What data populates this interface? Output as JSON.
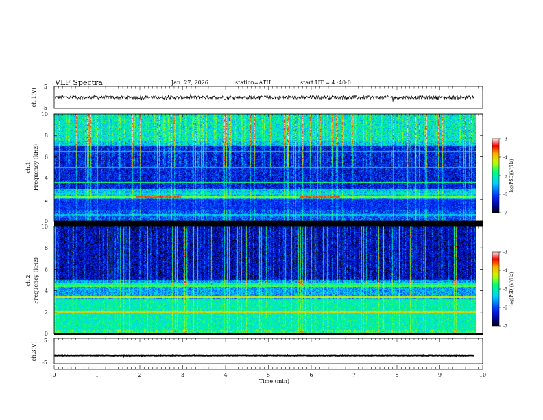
{
  "header": {
    "title": "VLF  Spectra",
    "date": "Jan. 27, 2026",
    "station": "station=ATH",
    "start": "start  UT  =   4  :40:0"
  },
  "colorbar": {
    "label": "log(PSD)(V²/Hz)",
    "ticks": [
      "-3",
      "-4",
      "-5",
      "-6",
      "-7"
    ],
    "stops": [
      "#ffffff",
      "#ff0000",
      "#ffff00",
      "#00ff00",
      "#00ffff",
      "#0000ff",
      "#000000"
    ]
  },
  "chart_data": [
    {
      "type": "line",
      "ylabel": "ch.1(V)",
      "ylim": [
        -5,
        5
      ],
      "yticks": [
        "5",
        "-5"
      ],
      "x_range": [
        0,
        9.8
      ],
      "level": 0,
      "noise_amplitude": 0.8
    },
    {
      "type": "heatmap",
      "ylabel": "ch.1\nFrequency  (kHz)",
      "ylabel_lines": [
        "ch.1",
        "Frequency  (kHz)"
      ],
      "ylim": [
        0,
        10
      ],
      "yticks": [
        "0",
        "2",
        "4",
        "6",
        "8",
        "10"
      ],
      "x_range": [
        0,
        9.8
      ],
      "value_range": [
        -7,
        -3
      ],
      "features": [
        {
          "kind": "band",
          "f_low": 0.4,
          "f_high": 0.6,
          "level": -4.8
        },
        {
          "kind": "band",
          "f_low": 1.0,
          "f_high": 2.0,
          "level": -6.3
        },
        {
          "kind": "line",
          "freq": 2.2,
          "level": -4.5
        },
        {
          "kind": "line",
          "freq": 2.55,
          "level": -5.2
        },
        {
          "kind": "line",
          "freq": 3.6,
          "level": -4.8
        },
        {
          "kind": "line",
          "freq": 5.0,
          "level": -5.5
        },
        {
          "kind": "line",
          "freq": 6.5,
          "level": -5.5
        },
        {
          "kind": "segment",
          "freq": 2.2,
          "t_start": 1.9,
          "t_end": 2.95,
          "level": -3.6
        },
        {
          "kind": "segment",
          "freq": 2.2,
          "t_start": 5.7,
          "t_end": 6.65,
          "level": -3.6
        }
      ]
    },
    {
      "type": "heatmap",
      "ylabel": "ch.2\nFrequency  (kHz)",
      "ylabel_lines": [
        "ch.2",
        "Frequency  (kHz)"
      ],
      "ylim": [
        0,
        10
      ],
      "yticks": [
        "0",
        "2",
        "4",
        "6",
        "8",
        "10"
      ],
      "x_range": [
        0,
        9.8
      ],
      "value_range": [
        -7,
        -3
      ],
      "features": [
        {
          "kind": "band",
          "f_low": 0.3,
          "f_high": 3.2,
          "level": -5.2
        },
        {
          "kind": "line",
          "freq": 2.0,
          "level": -4.0
        },
        {
          "kind": "line",
          "freq": 3.4,
          "level": -4.2
        },
        {
          "kind": "line",
          "freq": 4.4,
          "level": -4.6
        },
        {
          "kind": "line",
          "freq": 4.6,
          "level": -4.8
        }
      ]
    },
    {
      "type": "line",
      "ylabel": "ch.3(V)",
      "ylim": [
        -5,
        5
      ],
      "yticks": [
        "5",
        "-5"
      ],
      "x_range": [
        0,
        9.8
      ],
      "level": -1.8,
      "noise_amplitude": 0.3
    }
  ],
  "xaxis": {
    "label": "Time  (min)",
    "ticks": [
      "0",
      "1",
      "2",
      "3",
      "4",
      "5",
      "6",
      "7",
      "8",
      "9",
      "10"
    ],
    "xlim": [
      0,
      10
    ]
  }
}
